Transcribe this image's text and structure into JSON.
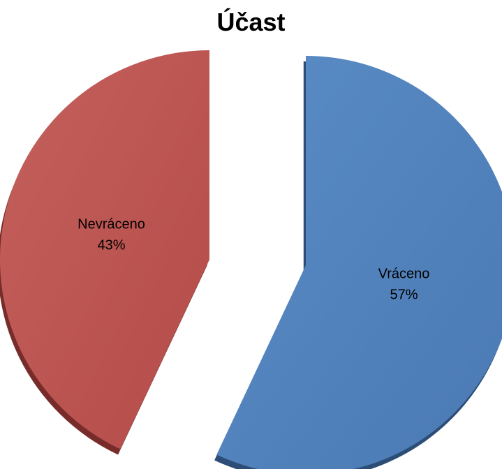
{
  "chart_data": {
    "type": "pie",
    "title": "Účast",
    "slices": [
      {
        "label": "Vráceno",
        "percent_label": "57%",
        "value": 57,
        "color": "#4f81bd",
        "dark": "#2c4d75"
      },
      {
        "label": "Nevráceno",
        "percent_label": "43%",
        "value": 43,
        "color": "#c0504d",
        "dark": "#772c2a"
      }
    ],
    "style": "3D exploded pie",
    "legend": "none"
  }
}
